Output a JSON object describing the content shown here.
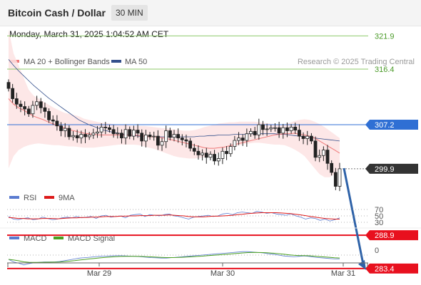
{
  "header": {
    "title": "Bitcoin Cash / Dollar",
    "interval": "30 MIN"
  },
  "timestamp": "Monday, March 31, 2025 1:04:52 AM CET",
  "legend": {
    "ma_bb": "MA 20 + Bollinger Bands",
    "ma50": "MA 50",
    "copyright": "Research © 2025 Trading Central"
  },
  "colors": {
    "ma20": "#f07a7a",
    "bollinger_fill": "#fde3e3",
    "ma50": "#34508c",
    "resistance": "#8dc96a",
    "pivot": "#2f6fd4",
    "current": "#333333",
    "support": "#e8101e",
    "up_candle": "#ffffff",
    "down_candle": "#222222",
    "arrow": "#2e62a8",
    "rsi": "#5a7bd0",
    "rsi_ma": "#dd1a1a",
    "macd": "#5a7bd0",
    "macd_signal": "#4aa020"
  },
  "chart_data": [
    {
      "type": "candlestick",
      "x_tick_labels": [
        "Mar 29",
        "Mar 30",
        "Mar 31"
      ],
      "ylim": [
        280,
        335
      ],
      "levels": [
        {
          "value": 321.9,
          "label": "321.9",
          "kind": "resistance"
        },
        {
          "value": 316.4,
          "label": "316.4",
          "kind": "resistance"
        },
        {
          "value": 307.2,
          "label": "307.2",
          "kind": "pivot"
        },
        {
          "value": 299.9,
          "label": "299.9",
          "kind": "current"
        },
        {
          "value": 288.9,
          "label": "288.9",
          "kind": "support"
        },
        {
          "value": 283.4,
          "label": "283.4",
          "kind": "support"
        }
      ],
      "close": [
        313.2,
        311.5,
        310.6,
        310.2,
        309.8,
        309.0,
        310.4,
        311.0,
        310.0,
        309.4,
        308.0,
        307.8,
        307.0,
        306.2,
        306.6,
        305.2,
        305.4,
        305.0,
        305.6,
        305.2,
        305.5,
        305.8,
        306.0,
        306.8,
        306.7,
        306.4,
        305.7,
        305.8,
        305.0,
        306.4,
        305.3,
        306.3,
        305.8,
        304.5,
        305.5,
        305.2,
        305.3,
        303.8,
        304.4,
        306.2,
        305.1,
        305.6,
        305.0,
        304.7,
        304.5,
        303.3,
        302.8,
        302.2,
        302.5,
        301.8,
        302.3,
        301.2,
        301.6,
        302.8,
        302.4,
        303.6,
        304.6,
        305.0,
        304.6,
        305.7,
        306.1,
        305.5,
        307.2,
        306.4,
        306.5,
        306.7,
        306.7,
        305.8,
        306.7,
        306.2,
        306.8,
        306.3,
        305.3,
        304.9,
        305.3,
        304.5,
        301.8,
        302.1,
        303.0,
        300.8,
        299.3,
        297.0,
        299.9
      ],
      "ma20": [
        311.5,
        310.6,
        310.0,
        309.6,
        309.1,
        308.6,
        308.3,
        308.0,
        307.6,
        307.3,
        307.0,
        306.7,
        306.4,
        306.2,
        306.0,
        305.8,
        305.7,
        305.6,
        305.5,
        305.5,
        305.5,
        305.5,
        305.5,
        305.5,
        305.5,
        305.5,
        305.4,
        305.3,
        305.2,
        305.2,
        305.1,
        305.0,
        304.8,
        304.6,
        304.4,
        304.2,
        304.0,
        303.8,
        303.6,
        303.4,
        303.3,
        303.3,
        303.4,
        303.5,
        303.7,
        303.9,
        304.1,
        304.3,
        304.5,
        304.7,
        304.9,
        305.1,
        305.3,
        305.5,
        305.6,
        305.7,
        305.7,
        305.8,
        305.6,
        305.5,
        305.3,
        305.0,
        304.5,
        304.0,
        303.5,
        303.0,
        302.5
      ],
      "ma50": [
        318.0,
        317.0,
        316.1,
        315.3,
        314.5,
        313.7,
        313.0,
        312.3,
        311.6,
        311.0,
        310.4,
        309.8,
        309.2,
        308.6,
        308.0,
        307.6,
        307.2,
        306.9,
        306.6,
        306.3,
        306.1,
        305.9,
        305.8,
        305.6,
        305.5,
        305.4,
        305.3,
        305.3,
        305.2,
        305.2,
        305.2,
        305.2,
        305.2,
        305.2,
        305.2,
        305.2,
        305.2,
        305.2,
        305.3,
        305.3,
        305.4,
        305.4,
        305.5,
        305.5,
        305.5,
        305.6,
        305.6,
        305.6,
        305.7,
        305.7,
        305.7,
        305.7,
        305.7,
        305.7,
        305.6,
        305.6,
        305.5,
        305.4,
        305.3,
        305.2,
        305.1,
        305.0,
        304.9,
        304.8,
        304.7,
        304.6,
        304.5
      ],
      "bb_upper": [
        323.0,
        319.0,
        317.0,
        315.0,
        313.0,
        312.0,
        311.5,
        311.0,
        310.5,
        310.0,
        309.6,
        309.2,
        309.0,
        308.8,
        308.6,
        308.2,
        308.0,
        307.8,
        307.6,
        307.5,
        307.4,
        307.3,
        307.2,
        307.2,
        307.1,
        307.0,
        307.0,
        307.0,
        306.9,
        306.8,
        306.7,
        306.6,
        306.5,
        306.4,
        306.3,
        306.2,
        306.2,
        306.3,
        306.5,
        306.8,
        307.0,
        307.2,
        307.4,
        307.5,
        307.6,
        307.6,
        307.7,
        307.7,
        307.7,
        307.7,
        307.6,
        307.5,
        307.4,
        307.3,
        307.2,
        307.3,
        307.5,
        307.8,
        308.0,
        308.1,
        308.0,
        307.7,
        307.3,
        306.8,
        306.2,
        305.6,
        305.0
      ],
      "bb_lower": [
        300.0,
        302.0,
        303.0,
        303.5,
        303.8,
        304.0,
        304.1,
        304.0,
        303.9,
        303.8,
        303.8,
        303.7,
        303.6,
        303.6,
        303.5,
        303.4,
        303.4,
        303.4,
        303.5,
        303.6,
        303.7,
        303.8,
        303.9,
        303.9,
        303.9,
        303.9,
        303.8,
        303.6,
        303.4,
        303.2,
        302.9,
        302.6,
        302.3,
        302.0,
        301.8,
        301.7,
        301.6,
        301.6,
        301.7,
        301.8,
        302.0,
        302.3,
        302.6,
        302.9,
        303.2,
        303.5,
        303.8,
        304.0,
        304.1,
        304.2,
        304.2,
        304.1,
        304.0,
        303.9,
        303.9,
        303.8,
        303.5,
        303.1,
        302.6,
        302.0,
        301.0,
        300.0,
        299.0,
        298.5,
        298.5,
        299.0,
        300.0
      ],
      "projection": {
        "from": 300.0,
        "to": 283.4
      }
    },
    {
      "type": "line",
      "legend": [
        "RSI",
        "9MA"
      ],
      "levels": [
        70,
        50,
        30
      ],
      "level_labels": [
        "70",
        "50",
        "30"
      ],
      "ylim": [
        0,
        100
      ],
      "rsi": [
        48,
        40,
        38,
        42,
        44,
        38,
        40,
        46,
        42,
        38,
        40,
        44,
        46,
        44,
        48,
        44,
        46,
        48,
        42,
        50,
        52,
        46,
        48,
        50,
        44,
        52,
        54,
        56,
        48,
        54,
        52,
        50,
        54,
        56,
        50,
        48,
        44,
        40,
        46,
        48,
        50,
        52,
        48,
        50,
        56,
        58,
        54,
        60,
        62,
        60,
        58,
        64,
        62,
        58,
        60,
        56,
        54,
        52,
        56,
        50,
        46,
        40,
        44,
        42,
        36,
        40,
        34,
        38,
        44
      ],
      "rsi_ma": [
        45,
        44,
        42,
        42,
        41,
        41,
        41,
        42,
        42,
        42,
        41,
        42,
        43,
        44,
        44,
        45,
        45,
        46,
        46,
        47,
        48,
        48,
        48,
        49,
        49,
        50,
        50,
        51,
        51,
        51,
        52,
        52,
        52,
        53,
        52,
        51,
        50,
        48,
        47,
        47,
        47,
        48,
        49,
        49,
        50,
        51,
        52,
        54,
        55,
        57,
        58,
        59,
        60,
        60,
        60,
        60,
        59,
        58,
        57,
        55,
        53,
        51,
        48,
        46,
        44,
        42,
        41,
        40,
        40
      ]
    },
    {
      "type": "line",
      "legend": [
        "MACD",
        "MACD Signal"
      ],
      "level_labels": [
        "0"
      ],
      "ylim": [
        -2.8,
        1.6
      ],
      "macd": [
        -1.0,
        -1.6,
        -1.9,
        -2.3,
        -2.0,
        -1.8,
        -1.7,
        -1.6,
        -1.6,
        -1.6,
        -1.5,
        -1.3,
        -1.1,
        -0.9,
        -0.7,
        -0.6,
        -0.5,
        -0.4,
        -0.3,
        -0.25,
        -0.2,
        -0.15,
        -0.15,
        -0.2,
        -0.25,
        -0.3,
        -0.4,
        -0.5,
        -0.6,
        -0.65,
        -0.7,
        -0.7,
        -0.6,
        -0.5,
        -0.4,
        -0.3,
        -0.2,
        -0.1,
        0.0,
        0.1,
        0.2,
        0.3,
        0.4,
        0.5,
        0.6,
        0.7,
        0.8,
        0.8,
        0.7,
        0.6,
        0.5,
        0.3,
        0.2,
        0.0,
        -0.2,
        -0.3,
        -0.4,
        -0.3,
        -0.2,
        -0.3,
        -0.5,
        -0.6,
        -0.7,
        -0.8,
        -0.9,
        -0.9
      ]
    }
  ]
}
